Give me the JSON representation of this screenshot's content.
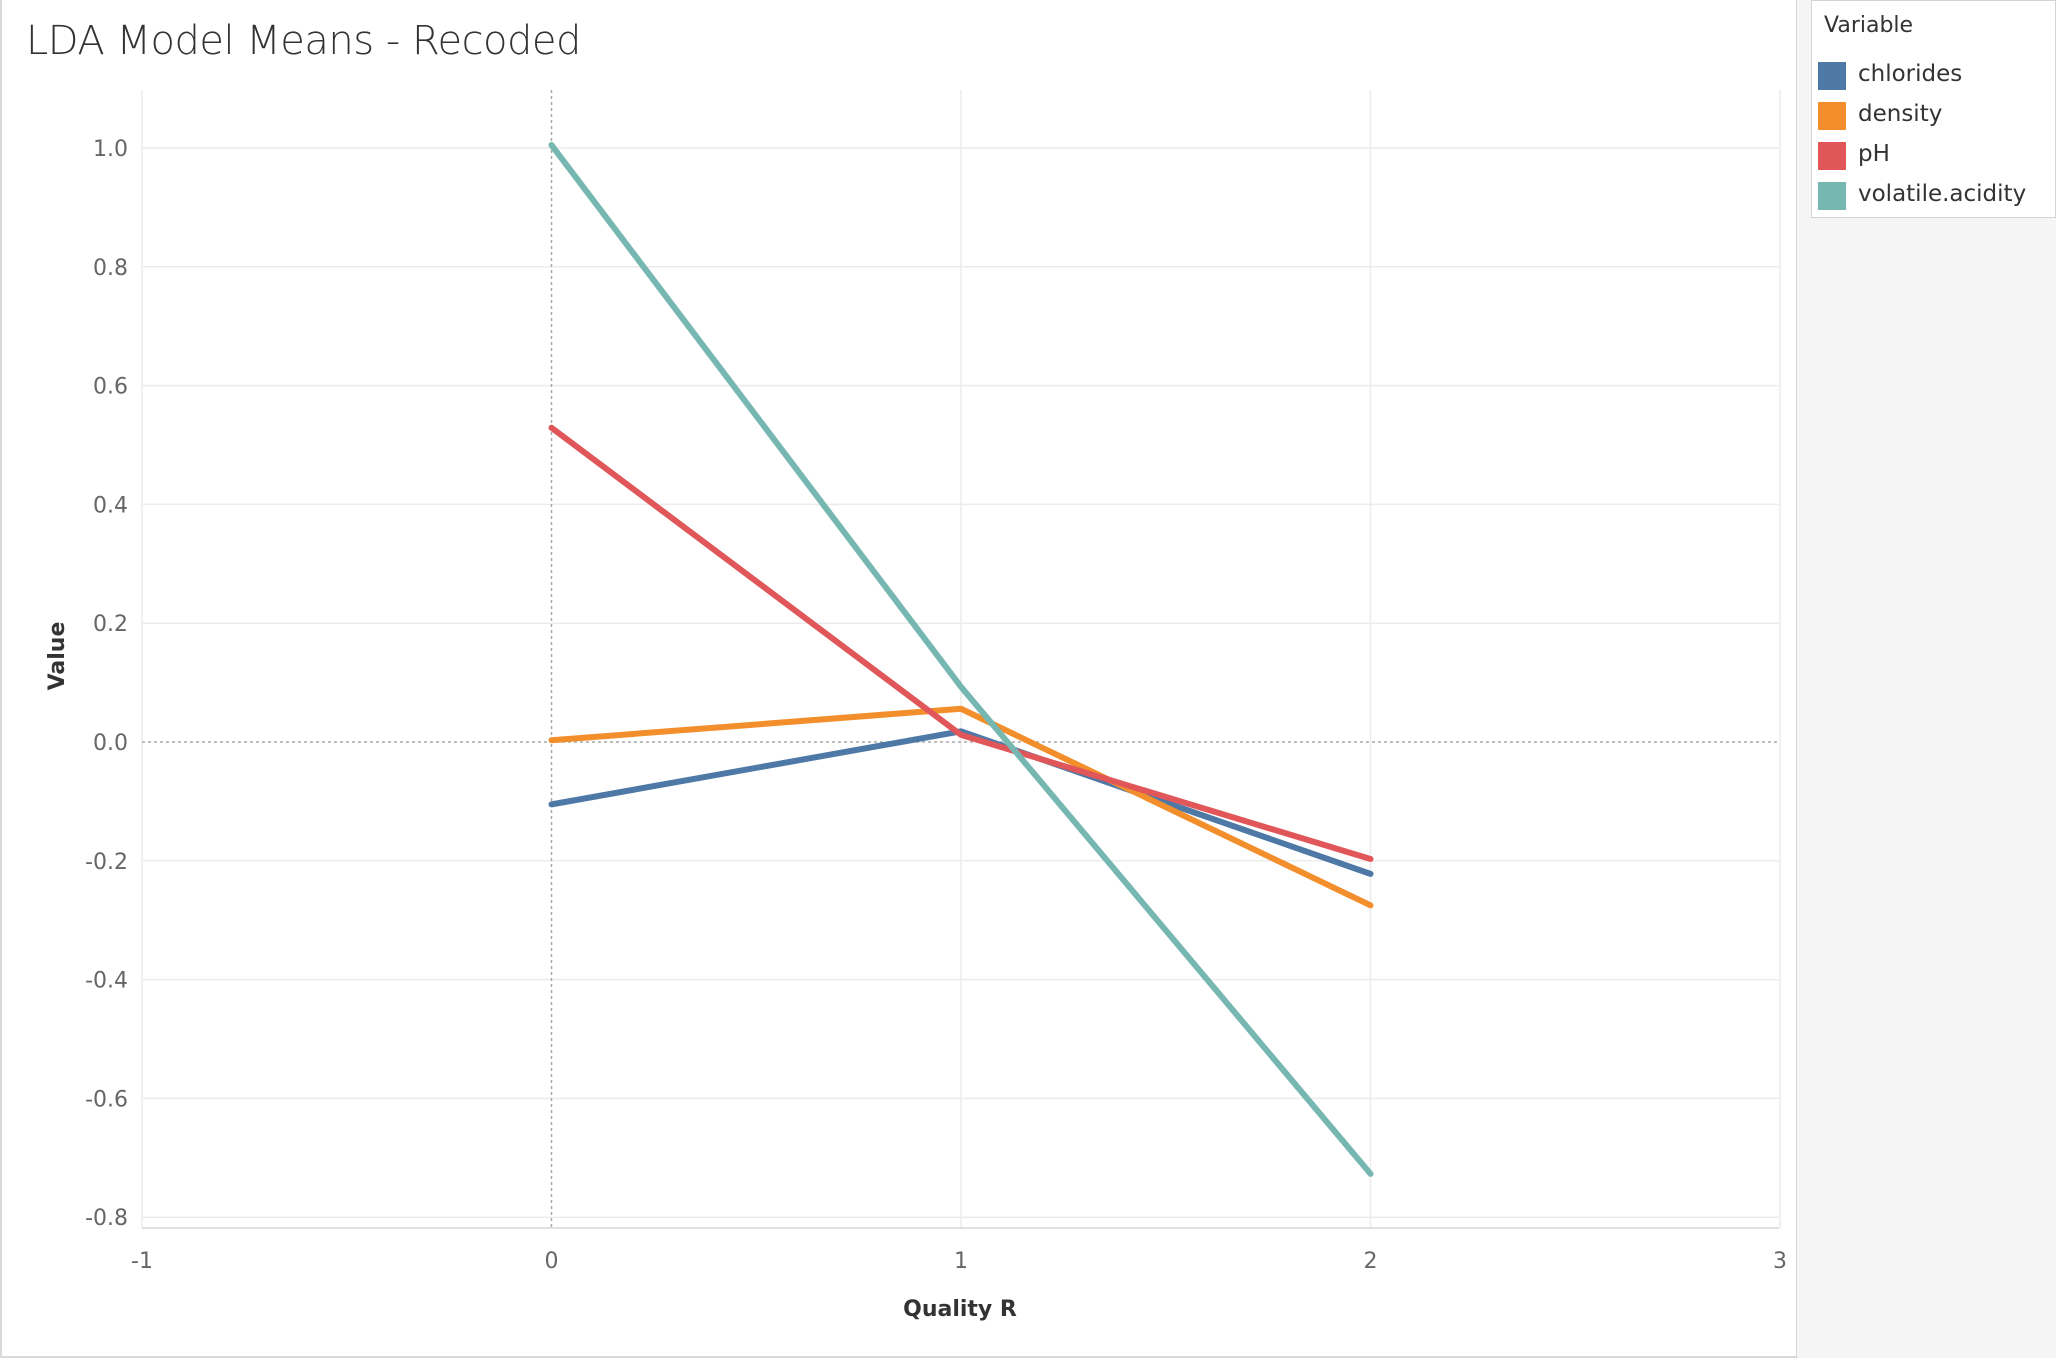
{
  "chart_data": {
    "type": "line",
    "title": "LDA Model Means - Recoded",
    "xlabel": "Quality R",
    "ylabel": "Value",
    "xlim": [
      -1,
      3
    ],
    "ylim": [
      -0.8,
      1.0
    ],
    "x_ticks": [
      "-1",
      "0",
      "1",
      "2",
      "3"
    ],
    "y_ticks": [
      "1.0",
      "0.8",
      "0.6",
      "0.4",
      "0.2",
      "0.0",
      "-0.2",
      "-0.4",
      "-0.6",
      "-0.8"
    ],
    "grid": true,
    "legend_title": "Variable",
    "legend_position": "top-right",
    "x": [
      0,
      1,
      2
    ],
    "series": [
      {
        "name": "chlorides",
        "color": "#4e79a7",
        "values": [
          -0.105,
          0.018,
          -0.222
        ]
      },
      {
        "name": "density",
        "color": "#f28e2b",
        "values": [
          0.003,
          0.056,
          -0.275
        ]
      },
      {
        "name": "pH",
        "color": "#e15759",
        "values": [
          0.529,
          0.012,
          -0.197
        ]
      },
      {
        "name": "volatile.acidity",
        "color": "#76b7b2",
        "values": [
          1.005,
          0.093,
          -0.727
        ]
      }
    ]
  }
}
